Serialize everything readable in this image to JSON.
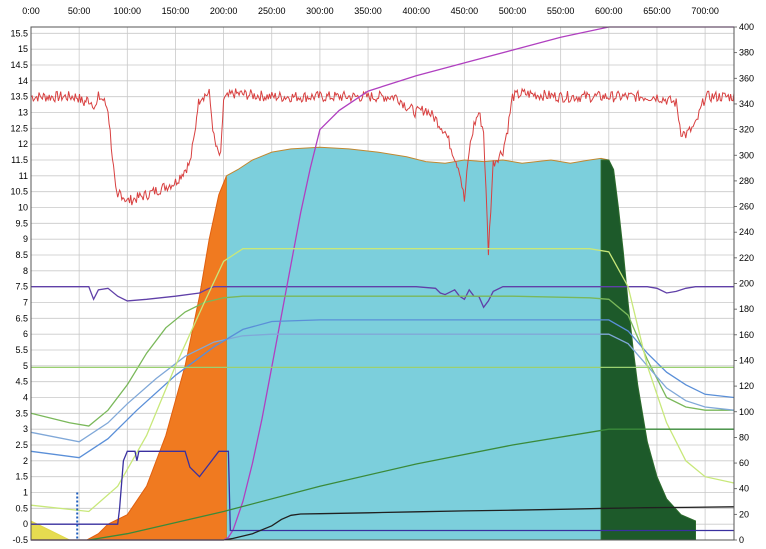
{
  "chart_data": {
    "type": "line",
    "title": "",
    "xlabel": "",
    "ylabel": "",
    "xlim": [
      0,
      730
    ],
    "ylim_left": [
      -0.5,
      15.7
    ],
    "ylim_right": [
      0,
      400
    ],
    "grid": true,
    "x_ticks": [
      {
        "value": 0,
        "label": "0:00"
      },
      {
        "value": 50,
        "label": "50:00"
      },
      {
        "value": 100,
        "label": "100:00"
      },
      {
        "value": 150,
        "label": "150:00"
      },
      {
        "value": 200,
        "label": "200:00"
      },
      {
        "value": 250,
        "label": "250:00"
      },
      {
        "value": 300,
        "label": "300:00"
      },
      {
        "value": 350,
        "label": "350:00"
      },
      {
        "value": 400,
        "label": "400:00"
      },
      {
        "value": 450,
        "label": "450:00"
      },
      {
        "value": 500,
        "label": "500:00"
      },
      {
        "value": 550,
        "label": "550:00"
      },
      {
        "value": 600,
        "label": "600:00"
      },
      {
        "value": 650,
        "label": "650:00"
      },
      {
        "value": 700,
        "label": "700:00"
      }
    ],
    "y_left_ticks": [
      "-0.5",
      "0",
      "0.5",
      "1",
      "1.5",
      "2",
      "2.5",
      "3",
      "3.5",
      "4",
      "4.5",
      "5",
      "5.5",
      "6",
      "6.5",
      "7",
      "7.5",
      "8",
      "8.5",
      "9",
      "9.5",
      "10",
      "10.5",
      "11",
      "11.5",
      "12",
      "12.5",
      "13",
      "13.5",
      "14",
      "14.5",
      "15",
      "15.5"
    ],
    "y_right_ticks": [
      "0",
      "20",
      "40",
      "60",
      "80",
      "100",
      "120",
      "140",
      "160",
      "180",
      "200",
      "220",
      "240",
      "260",
      "280",
      "300",
      "320",
      "340",
      "360",
      "380",
      "400"
    ],
    "series": [
      {
        "color": "#e06010",
        "fill": "#f07a20",
        "style": "area",
        "axis": "left",
        "x": [
          0,
          20,
          40,
          58,
          70,
          80,
          100,
          120,
          140,
          160,
          175,
          185,
          195,
          203
        ],
        "y": [
          -0.5,
          -0.5,
          -0.5,
          -0.5,
          -0.3,
          0,
          0.3,
          1.2,
          2.8,
          5,
          7.2,
          9,
          10.4,
          11
        ]
      },
      {
        "color": "#c08830",
        "fill": "#7ccfdc",
        "style": "area",
        "axis": "left",
        "x": [
          203,
          215,
          230,
          250,
          270,
          300,
          330,
          360,
          390,
          410,
          430,
          450,
          470,
          490,
          510,
          540,
          560,
          580,
          592,
          600
        ],
        "y": [
          11,
          11.2,
          11.5,
          11.75,
          11.85,
          11.9,
          11.85,
          11.75,
          11.6,
          11.45,
          11.4,
          11.5,
          11.45,
          11.5,
          11.4,
          11.5,
          11.4,
          11.5,
          11.55,
          11.5
        ]
      },
      {
        "color": "#2d6b2d",
        "fill": "#1d5a2a",
        "style": "area",
        "axis": "left",
        "x": [
          592,
          600,
          605,
          610,
          615,
          620,
          625,
          630,
          640,
          650,
          660,
          675,
          690
        ],
        "y": [
          11.5,
          11.5,
          11.2,
          10,
          8.6,
          7,
          5.6,
          4.4,
          2.6,
          1.5,
          0.8,
          0.3,
          0.1
        ]
      },
      {
        "color": "#d84040",
        "style": "line",
        "axis": "left",
        "noisy": true,
        "x": [
          0,
          45,
          48,
          55,
          58,
          60,
          64,
          68,
          70,
          75,
          80,
          88,
          90,
          92,
          100,
          120,
          150,
          165,
          170,
          173,
          176,
          185,
          190,
          193,
          197,
          200,
          210,
          250,
          300,
          350,
          380,
          390,
          400,
          410,
          420,
          430,
          435,
          440,
          445,
          450,
          455,
          460,
          465,
          470,
          475,
          480,
          490,
          495,
          500,
          510,
          550,
          600,
          640,
          650,
          660,
          670,
          675,
          680,
          690,
          700,
          710,
          730
        ],
        "y": [
          13.5,
          13.5,
          13.5,
          13.3,
          13.4,
          13.4,
          13.3,
          13.2,
          13.5,
          13.4,
          13.1,
          10.5,
          10.2,
          10.5,
          10.2,
          10.4,
          10.8,
          11.4,
          12.3,
          13.2,
          13.5,
          13.6,
          12.2,
          11.8,
          11.6,
          13.4,
          13.6,
          13.5,
          13.5,
          13.5,
          13.5,
          13.2,
          13,
          13.1,
          12.8,
          12.4,
          12,
          11.6,
          11.2,
          10.2,
          11.8,
          12.6,
          13,
          12.4,
          8.6,
          11.4,
          11.8,
          12.5,
          13.5,
          13.6,
          13.5,
          13.5,
          13.5,
          13.5,
          13.4,
          13.3,
          12.4,
          12.3,
          12.6,
          13.5,
          13.5,
          13.5
        ]
      },
      {
        "color": "#6040a8",
        "style": "line",
        "axis": "left",
        "x": [
          0,
          60,
          65,
          70,
          80,
          90,
          100,
          120,
          150,
          175,
          185,
          190,
          200,
          250,
          300,
          350,
          400,
          420,
          425,
          430,
          440,
          445,
          450,
          455,
          460,
          465,
          470,
          475,
          480,
          490,
          600,
          640,
          650,
          660,
          670,
          680,
          690,
          730
        ],
        "y": [
          7.5,
          7.5,
          7.1,
          7.4,
          7.45,
          7.2,
          7.05,
          7.1,
          7.2,
          7.3,
          7.45,
          7.5,
          7.5,
          7.5,
          7.5,
          7.5,
          7.5,
          7.45,
          7.3,
          7.25,
          7.4,
          7.2,
          7.1,
          7.4,
          7.2,
          7.2,
          6.85,
          7.05,
          7.35,
          7.5,
          7.5,
          7.5,
          7.45,
          7.3,
          7.35,
          7.45,
          7.5,
          7.5
        ]
      },
      {
        "color": "#b040c0",
        "style": "line",
        "axis": "right",
        "x": [
          0,
          195,
          200,
          205,
          210,
          220,
          230,
          240,
          250,
          260,
          270,
          280,
          290,
          300,
          320,
          350,
          400,
          450,
          500,
          550,
          600,
          650,
          730
        ],
        "y": [
          0,
          0,
          0,
          2,
          8,
          30,
          60,
          95,
          135,
          175,
          215,
          255,
          290,
          320,
          335,
          350,
          362,
          372,
          382,
          392,
          400,
          400,
          400
        ]
      },
      {
        "color": "#7ab85a",
        "style": "line",
        "axis": "left",
        "x": [
          0,
          40,
          60,
          80,
          100,
          120,
          140,
          160,
          180,
          200,
          220,
          250,
          300,
          400,
          500,
          580,
          600,
          620,
          640,
          660,
          680,
          700,
          730
        ],
        "y": [
          3.5,
          3.2,
          3.1,
          3.6,
          4.4,
          5.4,
          6.2,
          6.7,
          7,
          7.15,
          7.2,
          7.2,
          7.2,
          7.2,
          7.2,
          7.15,
          7.1,
          6.6,
          5.2,
          4,
          3.7,
          3.6,
          3.6
        ]
      },
      {
        "color": "#80a8d8",
        "style": "line",
        "axis": "left",
        "x": [
          0,
          50,
          80,
          100,
          130,
          160,
          190,
          220,
          250,
          300,
          400,
          500,
          560,
          600,
          620,
          640,
          660,
          680,
          700,
          730
        ],
        "y": [
          2.9,
          2.6,
          3.2,
          3.8,
          4.6,
          5.3,
          5.75,
          5.95,
          6,
          6,
          6,
          6,
          6,
          6,
          5.7,
          5,
          4.3,
          3.9,
          3.7,
          3.6
        ]
      },
      {
        "color": "#5a8fd8",
        "style": "line",
        "axis": "left",
        "x": [
          0,
          50,
          80,
          110,
          150,
          190,
          220,
          250,
          300,
          400,
          500,
          580,
          600,
          620,
          640,
          660,
          680,
          700,
          730
        ],
        "y": [
          2.3,
          2.1,
          2.7,
          3.6,
          4.7,
          5.6,
          6.15,
          6.4,
          6.45,
          6.45,
          6.45,
          6.45,
          6.45,
          6.1,
          5.4,
          4.8,
          4.4,
          4.1,
          4
        ]
      },
      {
        "color": "#c8e87a",
        "style": "line",
        "axis": "left",
        "x": [
          0,
          60,
          90,
          120,
          150,
          180,
          200,
          220,
          240,
          300,
          400,
          500,
          580,
          600,
          620,
          640,
          660,
          680,
          700,
          730
        ],
        "y": [
          0.6,
          0.4,
          1.2,
          2.8,
          5,
          7,
          8.3,
          8.7,
          8.7,
          8.7,
          8.7,
          8.7,
          8.7,
          8.6,
          7.5,
          5,
          3.2,
          2,
          1.5,
          1.3
        ]
      },
      {
        "color": "#9ad070",
        "style": "line",
        "axis": "left",
        "x": [
          0,
          200,
          201,
          730
        ],
        "y": [
          4.95,
          4.95,
          4.95,
          4.95
        ]
      },
      {
        "color": "#3a30a0",
        "style": "line",
        "axis": "left",
        "x": [
          0,
          90,
          92,
          96,
          100,
          108,
          110,
          112,
          140,
          150,
          160,
          165,
          175,
          185,
          195,
          200,
          205,
          207,
          209,
          300,
          600,
          605,
          640,
          645,
          730
        ],
        "y": [
          0,
          0,
          0.5,
          2,
          2.3,
          2.3,
          2,
          2.3,
          2.3,
          2.3,
          2.3,
          1.8,
          1.5,
          1.9,
          2.3,
          2.3,
          2.3,
          -0.2,
          -0.2,
          -0.2,
          -0.2,
          -0.2,
          -0.2,
          -0.2,
          -0.2
        ]
      },
      {
        "color": "#3a8a3a",
        "style": "line",
        "axis": "left",
        "x": [
          60,
          100,
          200,
          300,
          400,
          500,
          600,
          640,
          730
        ],
        "y": [
          -0.5,
          -0.3,
          0.4,
          1.2,
          1.9,
          2.5,
          3,
          3,
          3
        ]
      },
      {
        "color": "#202020",
        "style": "line",
        "axis": "left",
        "x": [
          0,
          200,
          210,
          230,
          250,
          260,
          270,
          280,
          300,
          350,
          400,
          450,
          500,
          550,
          600,
          640,
          680,
          730
        ],
        "y": [
          -0.5,
          -0.5,
          -0.45,
          -0.3,
          -0.05,
          0.15,
          0.28,
          0.32,
          0.33,
          0.36,
          0.39,
          0.42,
          0.44,
          0.47,
          0.5,
          0.52,
          0.53,
          0.55
        ]
      },
      {
        "color": "#e0d84a",
        "fill": "#e6dc50",
        "style": "area",
        "axis": "left",
        "x": [
          0,
          20,
          40,
          45
        ],
        "y": [
          0.1,
          -0.2,
          -0.5,
          -0.5
        ]
      }
    ],
    "annotations": []
  }
}
